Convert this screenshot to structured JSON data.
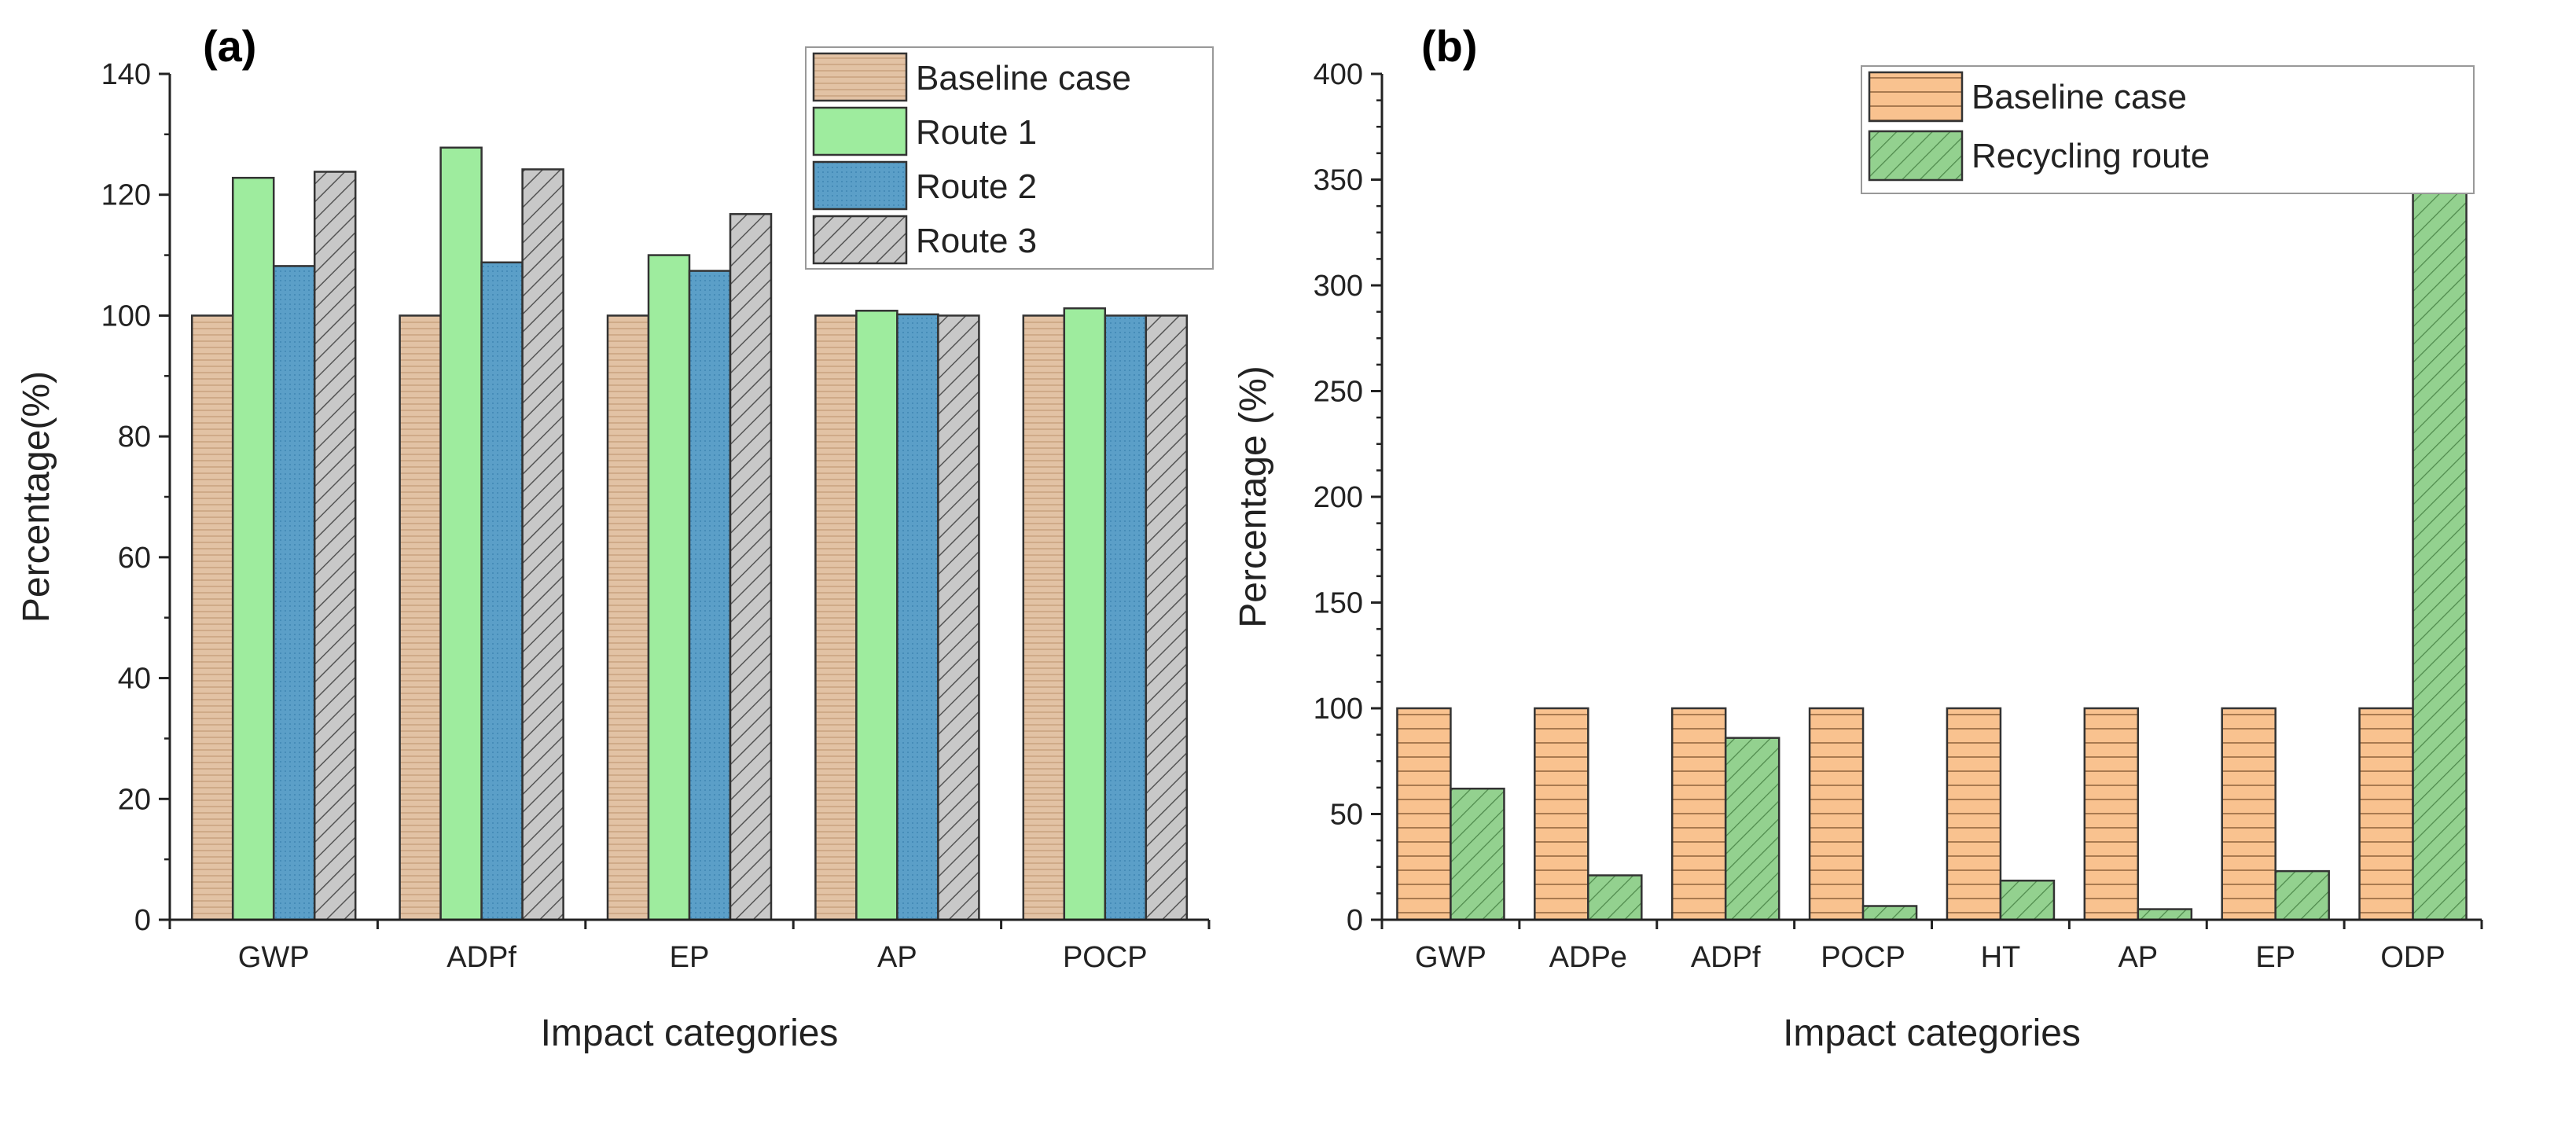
{
  "chart_data": [
    {
      "type": "bar",
      "panel_label": "(a)",
      "categories": [
        "GWP",
        "ADPf",
        "EP",
        "AP",
        "POCP"
      ],
      "series": [
        {
          "name": "Baseline case",
          "values": [
            100,
            100,
            100,
            100,
            100
          ],
          "color": "#e2c2a4",
          "pattern": "horizontal-lines"
        },
        {
          "name": "Route 1",
          "values": [
            122.8,
            127.8,
            110.0,
            100.8,
            101.2
          ],
          "color": "#9eec9e",
          "pattern": "solid"
        },
        {
          "name": "Route 2",
          "values": [
            108.2,
            108.8,
            107.4,
            100.2,
            100.0
          ],
          "color": "#5b9fc8",
          "pattern": "dots"
        },
        {
          "name": "Route 3",
          "values": [
            123.8,
            124.2,
            116.8,
            100.0,
            100.0
          ],
          "color": "#c8c8c8",
          "pattern": "diagonal-hatch"
        }
      ],
      "xlabel": "Impact categories",
      "ylabel": "Percentage(%)",
      "ylim": [
        0,
        140
      ],
      "yticks": [
        0,
        20,
        40,
        60,
        80,
        100,
        120,
        140
      ],
      "legend": "top-right",
      "grid": false
    },
    {
      "type": "bar",
      "panel_label": "(b)",
      "categories": [
        "GWP",
        "ADPe",
        "ADPf",
        "POCP",
        "HT",
        "AP",
        "EP",
        "ODP"
      ],
      "series": [
        {
          "name": "Baseline case",
          "values": [
            100,
            100,
            100,
            100,
            100,
            100,
            100,
            100
          ],
          "color": "#f9c28f",
          "pattern": "horizontal-lines"
        },
        {
          "name": "Recycling route",
          "values": [
            62,
            21,
            86,
            6.5,
            18.5,
            5,
            23,
            388
          ],
          "color": "#93d18f",
          "pattern": "diagonal-hatch"
        }
      ],
      "xlabel": "Impact categories",
      "ylabel": "Percentage (%)",
      "ylim": [
        0,
        400
      ],
      "yticks": [
        0,
        50,
        100,
        150,
        200,
        250,
        300,
        350,
        400
      ],
      "legend": "top-right",
      "grid": false
    }
  ]
}
